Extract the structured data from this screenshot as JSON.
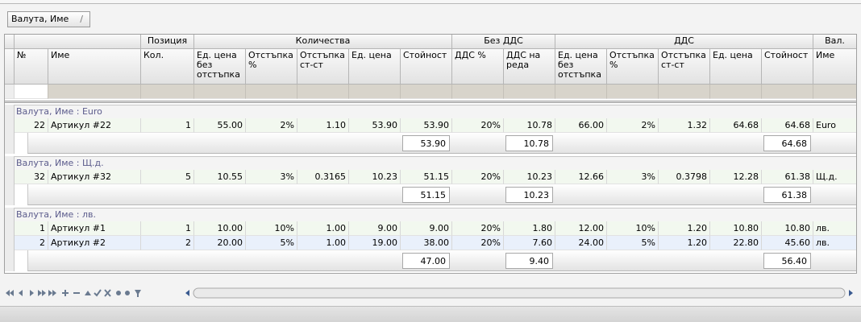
{
  "group_panel": {
    "button": "Валута, Име"
  },
  "grid": {
    "bands": [
      "Позиция",
      "Количества",
      "Без ДДС",
      "ДДС",
      "Вал."
    ],
    "columns": [
      "№",
      "Име",
      "Кол.",
      "Ед. цена без отстъпка",
      "Отстъпка %",
      "Отстъпка ст-ст",
      "Ед. цена",
      "Стойност",
      "ДДС %",
      "ДДС на реда",
      "Ед. цена без отстъпка",
      "Отстъпка %",
      "Отстъпка ст-ст",
      "Ед. цена",
      "Стойност",
      "Име"
    ],
    "groups": [
      {
        "label": "Валута, Име : Euro",
        "rows": [
          [
            "22",
            "Артикул #22",
            "1",
            "55.00",
            "2%",
            "1.10",
            "53.90",
            "53.90",
            "20%",
            "10.78",
            "66.00",
            "2%",
            "1.32",
            "64.68",
            "64.68",
            "Euro"
          ]
        ],
        "summary": [
          "53.90",
          "10.78",
          "64.68"
        ]
      },
      {
        "label": "Валута, Име : Щ.д.",
        "rows": [
          [
            "32",
            "Артикул #32",
            "5",
            "10.55",
            "3%",
            "0.3165",
            "10.23",
            "51.15",
            "20%",
            "10.23",
            "12.66",
            "3%",
            "0.3798",
            "12.28",
            "61.38",
            "Щ.д."
          ]
        ],
        "summary": [
          "51.15",
          "10.23",
          "61.38"
        ]
      },
      {
        "label": "Валута, Име : лв.",
        "rows": [
          [
            "1",
            "Артикул #1",
            "1",
            "10.00",
            "10%",
            "1.00",
            "9.00",
            "9.00",
            "20%",
            "1.80",
            "12.00",
            "10%",
            "1.20",
            "10.80",
            "10.80",
            "лв."
          ],
          [
            "2",
            "Артикул #2",
            "2",
            "20.00",
            "5%",
            "1.00",
            "19.00",
            "38.00",
            "20%",
            "7.60",
            "24.00",
            "5%",
            "1.20",
            "22.80",
            "45.60",
            "лв."
          ]
        ],
        "summary": [
          "47.00",
          "9.40",
          "56.40"
        ]
      }
    ]
  }
}
